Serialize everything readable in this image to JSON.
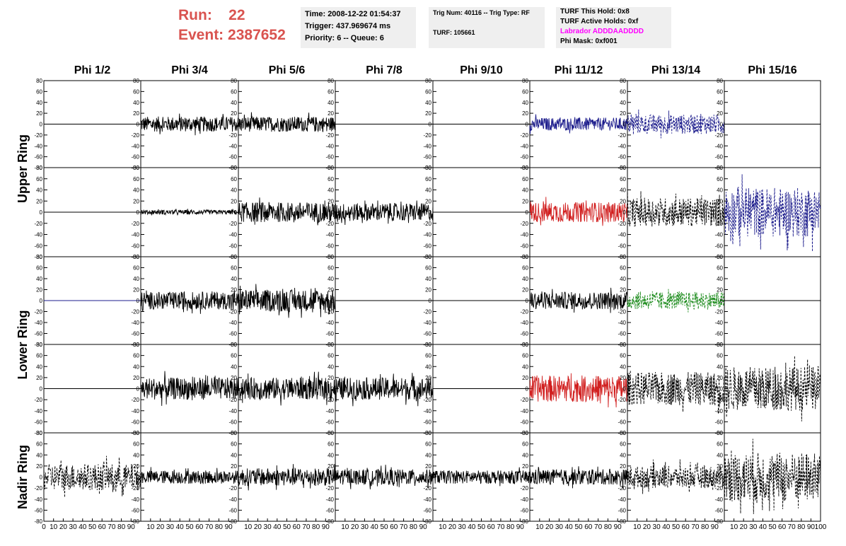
{
  "header": {
    "run_label": "Run:",
    "run_value": "22",
    "event_label": "Event:",
    "event_value": "2387652",
    "time": "Time: 2008-12-22 01:54:37",
    "trigger": "Trigger: 437.969674 ms",
    "priority": "Priority: 6 -- Queue: 6",
    "trig_num": "Trig Num: 40116 -- Trig Type: RF",
    "turf": "TURF: 105661",
    "turf_this_hold": "TURF This Hold: 0x8",
    "turf_active_holds": "TURF Active Holds: 0xf",
    "labrador": "Labrador ADDDAADDDD",
    "phi_mask": "Phi Mask: 0xf001"
  },
  "chart_data": {
    "type": "line",
    "columns": [
      "Phi 1/2",
      "Phi 3/4",
      "Phi 5/6",
      "Phi 7/8",
      "Phi 9/10",
      "Phi 11/12",
      "Phi 13/14",
      "Phi 15/16"
    ],
    "rings": [
      "Upper Ring",
      "Lower Ring",
      "Nadir Ring"
    ],
    "ylim": [
      -80,
      80
    ],
    "y_ticks": [
      "80",
      "60",
      "40",
      "20",
      "0",
      "-20",
      "-40",
      "-60",
      "-80"
    ],
    "x_ticks_first": [
      "0",
      "10",
      "20",
      "30",
      "40",
      "50",
      "60",
      "70",
      "80",
      "90"
    ],
    "x_ticks_middle": [
      "10",
      "20",
      "30",
      "40",
      "50",
      "60",
      "70",
      "80",
      "90"
    ],
    "x_ticks_last": [
      "10",
      "20",
      "30",
      "40",
      "50",
      "60",
      "70",
      "80",
      "90",
      "100"
    ],
    "colors": {
      "black": "#000000",
      "blue": "#1c1c8c",
      "red": "#d11f1f",
      "green": "#1a8a1a"
    },
    "rows": [
      [
        {
          "amp": 0,
          "color": "black",
          "style": "flat"
        },
        {
          "amp": 14,
          "color": "black",
          "style": "solid"
        },
        {
          "amp": 14,
          "color": "black",
          "style": "solid"
        },
        {
          "amp": 0,
          "color": "black",
          "style": "flat"
        },
        {
          "amp": 0,
          "color": "black",
          "style": "flat"
        },
        {
          "amp": 12,
          "color": "blue",
          "style": "solid"
        },
        {
          "amp": 18,
          "color": "blue",
          "style": "dashed"
        },
        {
          "amp": 0,
          "color": "black",
          "style": "flat"
        }
      ],
      [
        {
          "amp": 0,
          "color": "black",
          "style": "flat"
        },
        {
          "amp": 4,
          "color": "black",
          "style": "solid"
        },
        {
          "amp": 18,
          "color": "black",
          "style": "solid"
        },
        {
          "amp": 16,
          "color": "black",
          "style": "solid"
        },
        {
          "amp": 0,
          "color": "black",
          "style": "flat"
        },
        {
          "amp": 18,
          "color": "red",
          "style": "solid"
        },
        {
          "amp": 26,
          "color": "black",
          "style": "dashed"
        },
        {
          "amp": 45,
          "color": "blue",
          "style": "dashed"
        }
      ],
      [
        {
          "amp": 0,
          "color": "blue",
          "style": "flat"
        },
        {
          "amp": 16,
          "color": "black",
          "style": "solid"
        },
        {
          "amp": 20,
          "color": "black",
          "style": "solid"
        },
        {
          "amp": 0,
          "color": "black",
          "style": "flat"
        },
        {
          "amp": 0,
          "color": "black",
          "style": "flat"
        },
        {
          "amp": 16,
          "color": "black",
          "style": "solid"
        },
        {
          "amp": 16,
          "color": "green",
          "style": "dashed"
        },
        {
          "amp": 0,
          "color": "black",
          "style": "flat"
        }
      ],
      [
        {
          "amp": 0,
          "color": "black",
          "style": "flat"
        },
        {
          "amp": 20,
          "color": "black",
          "style": "solid"
        },
        {
          "amp": 20,
          "color": "black",
          "style": "solid"
        },
        {
          "amp": 20,
          "color": "black",
          "style": "solid"
        },
        {
          "amp": 0,
          "color": "black",
          "style": "flat"
        },
        {
          "amp": 24,
          "color": "red",
          "style": "solid"
        },
        {
          "amp": 30,
          "color": "black",
          "style": "dashed"
        },
        {
          "amp": 40,
          "color": "black",
          "style": "dashed"
        }
      ],
      [
        {
          "amp": 24,
          "color": "black",
          "style": "dashed"
        },
        {
          "amp": 12,
          "color": "black",
          "style": "solid"
        },
        {
          "amp": 16,
          "color": "black",
          "style": "solid"
        },
        {
          "amp": 14,
          "color": "black",
          "style": "solid"
        },
        {
          "amp": 12,
          "color": "black",
          "style": "solid"
        },
        {
          "amp": 14,
          "color": "black",
          "style": "solid"
        },
        {
          "amp": 20,
          "color": "black",
          "style": "dashed"
        },
        {
          "amp": 45,
          "color": "black",
          "style": "dashed"
        }
      ]
    ]
  }
}
